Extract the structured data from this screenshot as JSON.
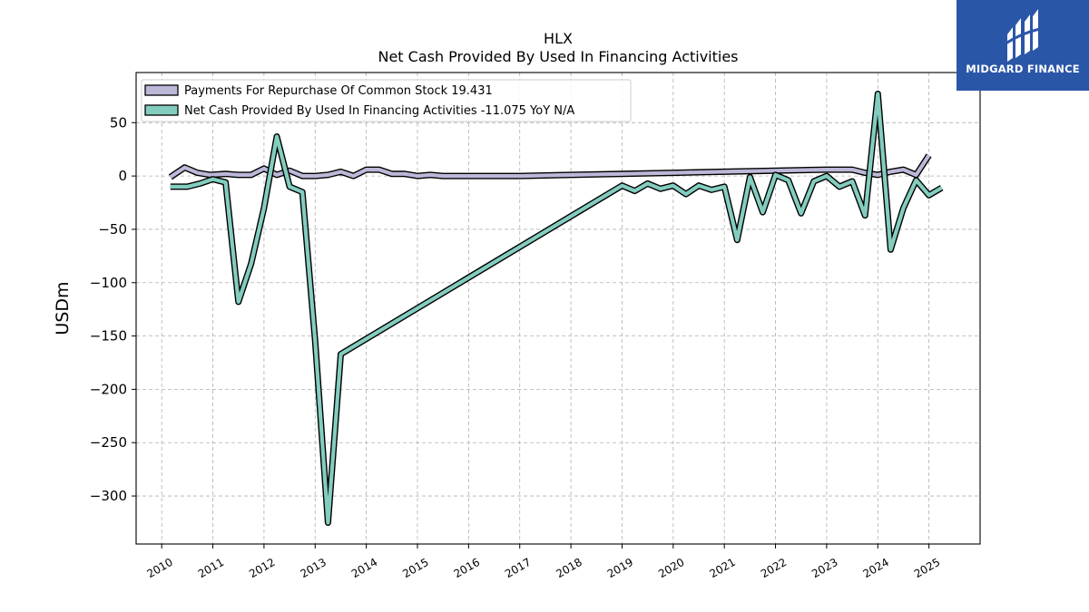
{
  "brand": {
    "name": "MIDGARD FINANCE",
    "bg_color": "#2a56a8"
  },
  "chart_data": {
    "type": "line",
    "title": "HLX",
    "subtitle": "Net Cash Provided By Used In Financing Activities",
    "ylabel": "USDm",
    "xlabel": "",
    "xlim": [
      2009.5,
      2026.0
    ],
    "ylim": [
      -345,
      97
    ],
    "grid": true,
    "legend_position": "top-left",
    "x_ticks": [
      2010,
      2011,
      2012,
      2013,
      2014,
      2015,
      2016,
      2017,
      2018,
      2019,
      2020,
      2021,
      2022,
      2023,
      2024,
      2025
    ],
    "x_tick_labels": [
      "2010",
      "2011",
      "2012",
      "2013",
      "2014",
      "2015",
      "2016",
      "2017",
      "2018",
      "2019",
      "2020",
      "2021",
      "2022",
      "2023",
      "2024",
      "2025"
    ],
    "y_ticks": [
      50,
      0,
      -50,
      -100,
      -150,
      -200,
      -250,
      -300
    ],
    "y_tick_labels": [
      "50",
      "0",
      "−50",
      "−100",
      "−150",
      "−200",
      "−250",
      "−300"
    ],
    "series": [
      {
        "name": "Payments For Repurchase Of Common Stock",
        "legend_label": "Payments For Repurchase Of Common Stock  19.431",
        "color": "#bcb8d8",
        "x": [
          2010.17,
          2010.45,
          2010.7,
          2010.95,
          2011.25,
          2011.5,
          2011.75,
          2012.0,
          2012.25,
          2012.5,
          2012.75,
          2013.0,
          2013.25,
          2013.5,
          2013.75,
          2014.0,
          2014.25,
          2014.5,
          2014.75,
          2015.0,
          2015.25,
          2015.5,
          2016.0,
          2016.5,
          2017.0,
          2018.0,
          2019.0,
          2020.0,
          2021.0,
          2022.0,
          2023.0,
          2023.5,
          2023.75,
          2024.0,
          2024.25,
          2024.5,
          2024.75,
          2025.0
        ],
        "y": [
          -1,
          8,
          3,
          1,
          2,
          1,
          1,
          7,
          1,
          5,
          0,
          0,
          1,
          4,
          0,
          6,
          6,
          2,
          2,
          0,
          1,
          0,
          0,
          0,
          0,
          1,
          2,
          3,
          4,
          5,
          6,
          6,
          3,
          1,
          4,
          6,
          1,
          19.431
        ]
      },
      {
        "name": "Net Cash Provided By Used In Financing Activities",
        "legend_label": "Net Cash Provided By Used In Financing Activities  -11.075 YoY N/A",
        "color": "#83cdbf",
        "x": [
          2010.17,
          2010.5,
          2010.75,
          2011.0,
          2011.25,
          2011.5,
          2011.75,
          2012.0,
          2012.25,
          2012.5,
          2012.75,
          2013.0,
          2013.25,
          2013.5,
          2019.0,
          2019.25,
          2019.5,
          2019.75,
          2020.0,
          2020.25,
          2020.5,
          2020.75,
          2021.0,
          2021.25,
          2021.5,
          2021.75,
          2022.0,
          2022.25,
          2022.5,
          2022.75,
          2023.0,
          2023.25,
          2023.5,
          2023.75,
          2024.0,
          2024.25,
          2024.5,
          2024.75,
          2025.0,
          2025.25
        ],
        "y": [
          -10,
          -10,
          -7,
          -3,
          -6,
          -118,
          -82,
          -30,
          37,
          -10,
          -15,
          -155,
          -325,
          -167,
          -9,
          -14,
          -7,
          -12,
          -9,
          -17,
          -9,
          -13,
          -10,
          -60,
          -1,
          -34,
          1,
          -4,
          -35,
          -5,
          0,
          -10,
          -5,
          -37,
          77,
          -69,
          -30,
          -4,
          -18,
          -11.075
        ]
      }
    ]
  }
}
